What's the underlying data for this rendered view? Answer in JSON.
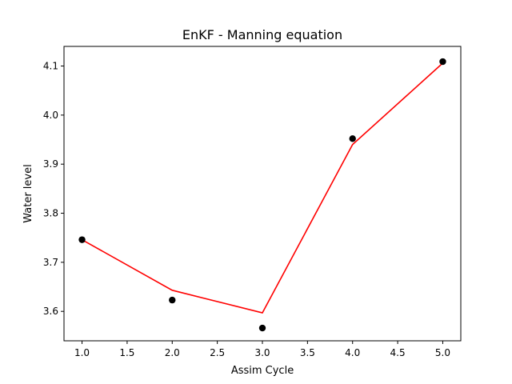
{
  "chart_data": {
    "type": "line",
    "title": "EnKF - Manning equation",
    "xlabel": "Assim Cycle",
    "ylabel": "Water level",
    "xlim": [
      0.8,
      5.2
    ],
    "ylim": [
      3.54,
      4.14
    ],
    "xticks": [
      1.0,
      1.5,
      2.0,
      2.5,
      3.0,
      3.5,
      4.0,
      4.5,
      5.0
    ],
    "xtick_labels": [
      "1.0",
      "1.5",
      "2.0",
      "2.5",
      "3.0",
      "3.5",
      "4.0",
      "4.5",
      "5.0"
    ],
    "yticks": [
      3.6,
      3.7,
      3.8,
      3.9,
      4.0,
      4.1
    ],
    "ytick_labels": [
      "3.6",
      "3.7",
      "3.8",
      "3.9",
      "4.0",
      "4.1"
    ],
    "grid": false,
    "series": [
      {
        "style": "line",
        "color": "#ff0000",
        "x": [
          1,
          2,
          3,
          4,
          5
        ],
        "y": [
          3.746,
          3.643,
          3.597,
          3.94,
          4.106
        ]
      },
      {
        "style": "scatter",
        "color": "#000000",
        "x": [
          1,
          2,
          3,
          4,
          5
        ],
        "y": [
          3.746,
          3.623,
          3.566,
          3.952,
          4.109
        ]
      }
    ]
  }
}
